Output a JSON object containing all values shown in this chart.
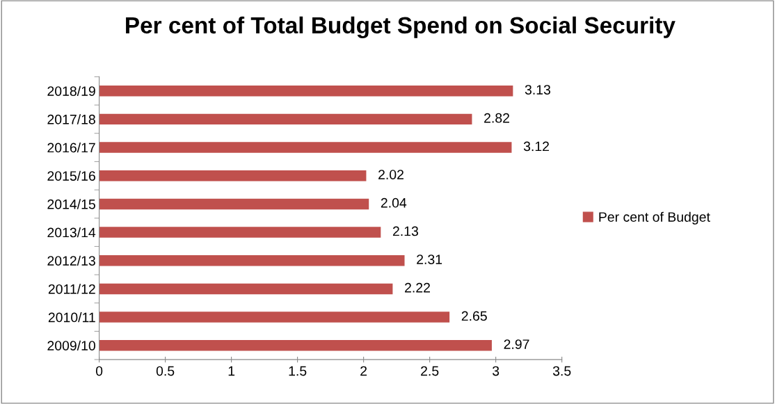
{
  "chart_data": {
    "type": "bar",
    "orientation": "horizontal",
    "title": "Per cent of Total Budget Spend on Social Security",
    "categories": [
      "2018/19",
      "2017/18",
      "2016/17",
      "2015/16",
      "2014/15",
      "2013/14",
      "2012/13",
      "2011/12",
      "2010/11",
      "2009/10"
    ],
    "series": [
      {
        "name": "Per cent of Budget",
        "color": "#c0504d",
        "values": [
          3.13,
          2.82,
          3.12,
          2.02,
          2.04,
          2.13,
          2.31,
          2.22,
          2.65,
          2.97
        ]
      }
    ],
    "xlim": [
      0,
      3.5
    ],
    "xticks": [
      0,
      0.5,
      1,
      1.5,
      2,
      2.5,
      3,
      3.5
    ],
    "data_labels": true,
    "legend": "right",
    "grid": false
  }
}
